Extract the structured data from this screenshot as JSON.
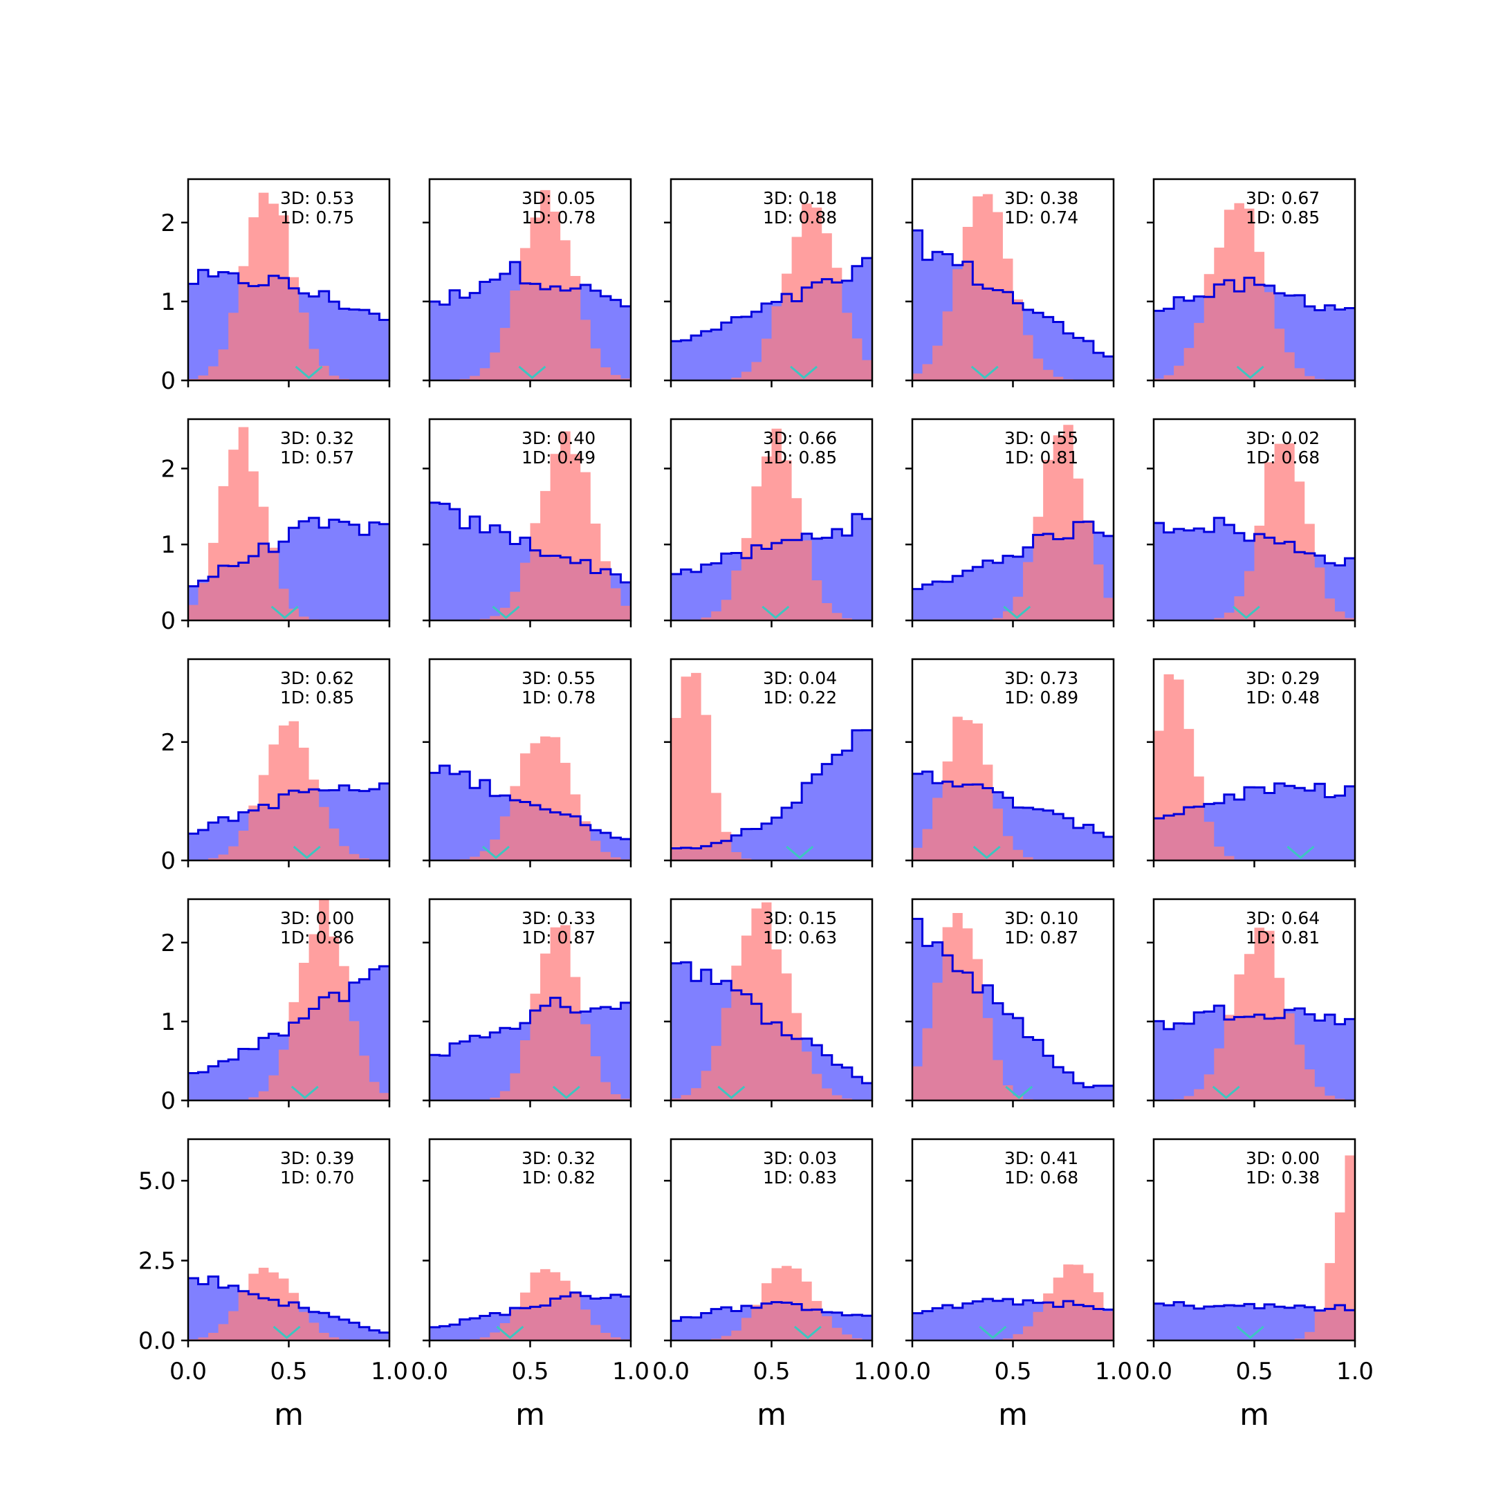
{
  "chart_data": {
    "type": "histogram-grid",
    "rows": 5,
    "cols": 5,
    "xlabel": "m",
    "xlim": [
      0,
      1
    ],
    "xticks": [
      "0.0",
      "0.5",
      "1.0"
    ],
    "row_yaxes": [
      {
        "ylim": [
          0,
          2.55
        ],
        "ticks": [
          0,
          1,
          2
        ],
        "tick_labels": [
          "0",
          "1",
          "2"
        ]
      },
      {
        "ylim": [
          0,
          2.65
        ],
        "ticks": [
          0,
          1,
          2
        ],
        "tick_labels": [
          "0",
          "1",
          "2"
        ]
      },
      {
        "ylim": [
          0,
          3.4
        ],
        "ticks": [
          0,
          2
        ],
        "tick_labels": [
          "0",
          "2"
        ]
      },
      {
        "ylim": [
          0,
          2.55
        ],
        "ticks": [
          0,
          1,
          2
        ],
        "tick_labels": [
          "0",
          "1",
          "2"
        ]
      },
      {
        "ylim": [
          0,
          6.3
        ],
        "ticks": [
          0,
          2.5,
          5
        ],
        "tick_labels": [
          "0.0",
          "2.5",
          "5.0"
        ]
      }
    ],
    "colors": {
      "blue_fill": "#8080ff",
      "blue_edge": "#0000dd",
      "red_fill": "#ff7f7f",
      "marker": "#3cc6c0"
    },
    "panels": [
      {
        "ann1": "3D: 0.53",
        "ann2": "1D: 0.75",
        "marker": 0.6,
        "peak_r": 2.4,
        "peak_b": 1.4
      },
      {
        "ann1": "3D: 0.05",
        "ann2": "1D: 0.78",
        "marker": 0.51,
        "peak_r": 2.35,
        "peak_b": 1.5
      },
      {
        "ann1": "3D: 0.18",
        "ann2": "1D: 0.88",
        "marker": 0.66,
        "peak_r": 2.3,
        "peak_b": 1.55
      },
      {
        "ann1": "3D: 0.38",
        "ann2": "1D: 0.74",
        "marker": 0.36,
        "peak_r": 2.35,
        "peak_b": 1.9
      },
      {
        "ann1": "3D: 0.67",
        "ann2": "1D: 0.85",
        "marker": 0.48,
        "peak_r": 2.35,
        "peak_b": 1.3
      },
      {
        "ann1": "3D: 0.32",
        "ann2": "1D: 0.57",
        "marker": 0.48,
        "peak_r": 2.4,
        "peak_b": 1.35
      },
      {
        "ann1": "3D: 0.40",
        "ann2": "1D: 0.49",
        "marker": 0.38,
        "peak_r": 2.5,
        "peak_b": 1.55
      },
      {
        "ann1": "3D: 0.66",
        "ann2": "1D: 0.85",
        "marker": 0.52,
        "peak_r": 2.35,
        "peak_b": 1.4
      },
      {
        "ann1": "3D: 0.55",
        "ann2": "1D: 0.81",
        "marker": 0.52,
        "peak_r": 2.55,
        "peak_b": 1.3
      },
      {
        "ann1": "3D: 0.02",
        "ann2": "1D: 0.68",
        "marker": 0.46,
        "peak_r": 2.5,
        "peak_b": 1.35
      },
      {
        "ann1": "3D: 0.62",
        "ann2": "1D: 0.85",
        "marker": 0.59,
        "peak_r": 2.3,
        "peak_b": 1.3
      },
      {
        "ann1": "3D: 0.55",
        "ann2": "1D: 0.78",
        "marker": 0.33,
        "peak_r": 2.2,
        "peak_b": 1.6
      },
      {
        "ann1": "3D: 0.04",
        "ann2": "1D: 0.22",
        "marker": 0.64,
        "peak_r": 3.25,
        "peak_b": 2.2
      },
      {
        "ann1": "3D: 0.73",
        "ann2": "1D: 0.89",
        "marker": 0.37,
        "peak_r": 2.5,
        "peak_b": 1.5
      },
      {
        "ann1": "3D: 0.29",
        "ann2": "1D: 0.48",
        "marker": 0.73,
        "peak_r": 3.05,
        "peak_b": 1.3
      },
      {
        "ann1": "3D: 0.00",
        "ann2": "1D: 0.86",
        "marker": 0.58,
        "peak_r": 2.4,
        "peak_b": 1.7
      },
      {
        "ann1": "3D: 0.33",
        "ann2": "1D: 0.87",
        "marker": 0.68,
        "peak_r": 2.2,
        "peak_b": 1.3
      },
      {
        "ann1": "3D: 0.15",
        "ann2": "1D: 0.63",
        "marker": 0.3,
        "peak_r": 2.4,
        "peak_b": 1.75
      },
      {
        "ann1": "3D: 0.10",
        "ann2": "1D: 0.87",
        "marker": 0.53,
        "peak_r": 2.45,
        "peak_b": 2.3
      },
      {
        "ann1": "3D: 0.64",
        "ann2": "1D: 0.81",
        "marker": 0.36,
        "peak_r": 2.2,
        "peak_b": 1.2
      },
      {
        "ann1": "3D: 0.39",
        "ann2": "1D: 0.70",
        "marker": 0.49,
        "peak_r": 2.3,
        "peak_b": 2.0
      },
      {
        "ann1": "3D: 0.32",
        "ann2": "1D: 0.82",
        "marker": 0.4,
        "peak_r": 2.35,
        "peak_b": 1.5
      },
      {
        "ann1": "3D: 0.03",
        "ann2": "1D: 0.83",
        "marker": 0.68,
        "peak_r": 2.3,
        "peak_b": 1.2
      },
      {
        "ann1": "3D: 0.41",
        "ann2": "1D: 0.68",
        "marker": 0.4,
        "peak_r": 2.55,
        "peak_b": 1.3
      },
      {
        "ann1": "3D: 0.00",
        "ann2": "1D: 0.38",
        "marker": 0.48,
        "peak_r": 5.95,
        "peak_b": 1.2
      }
    ]
  }
}
